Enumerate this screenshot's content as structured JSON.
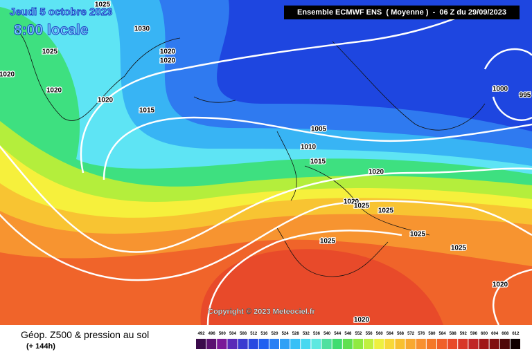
{
  "header": {
    "date": "Jeudi 5 octobre 2023",
    "time": "8:00 locale",
    "run": "Ensemble ECMWF ENS  ( Moyenne )  -  06 Z du 29/09/2023"
  },
  "copyright": "Copyright © 2023 Meteociel.fr",
  "isobar_labels": [
    1025,
    1030,
    1025,
    1020,
    1020,
    1020,
    1020,
    1020,
    1015,
    1005,
    1010,
    1015,
    1020,
    1000,
    995,
    1020,
    1025,
    1025,
    1025,
    1025,
    1025,
    1020,
    1020
  ],
  "footer": {
    "title": "Géop. Z500 & pression au sol",
    "subtitle": "(+ 144h)"
  },
  "legend": {
    "ticks": [
      492,
      496,
      500,
      504,
      508,
      512,
      516,
      520,
      524,
      528,
      532,
      536,
      540,
      544,
      548,
      552,
      556,
      560,
      564,
      568,
      572,
      576,
      580,
      584,
      588,
      592,
      596,
      600,
      604,
      608,
      612
    ]
  }
}
